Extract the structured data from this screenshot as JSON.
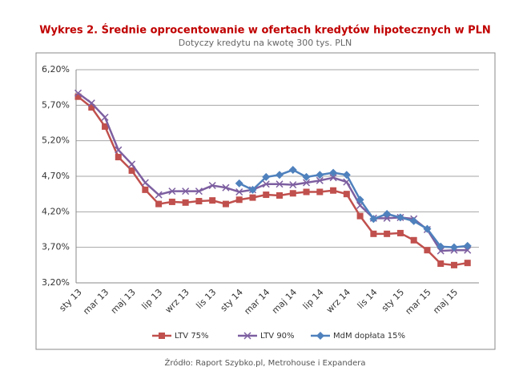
{
  "chart_data": {
    "type": "line",
    "title": "Wykres 2. Średnie oprocentowanie w ofertach kredytów hipotecznych w PLN",
    "subtitle": "Dotyczy kredytu na kwotę 300 tys. PLN",
    "source": "Źródło: Raport Szybko.pl, Metrohouse i Expandera",
    "categories": [
      "sty 13",
      null,
      "mar 13",
      null,
      "maj 13",
      null,
      "lip 13",
      null,
      "wrz 13",
      null,
      "lis 13",
      null,
      "sty 14",
      null,
      "mar 14",
      null,
      "maj 14",
      null,
      "lip 14",
      null,
      "wrz 14",
      null,
      "lis 14",
      null,
      "sty 15",
      null,
      "mar 15",
      null,
      "maj 15",
      null
    ],
    "ylim": [
      3.2,
      6.2
    ],
    "yticks": [
      {
        "value": 3.2,
        "label": "3,20%"
      },
      {
        "value": 3.7,
        "label": "3,70%"
      },
      {
        "value": 4.2,
        "label": "4,20%"
      },
      {
        "value": 4.7,
        "label": "4,70%"
      },
      {
        "value": 5.2,
        "label": "5,20%"
      },
      {
        "value": 5.7,
        "label": "5,70%"
      },
      {
        "value": 6.2,
        "label": "6,20%"
      }
    ],
    "grid": true,
    "legend": "bottom",
    "series": [
      {
        "name": "LTV 75%",
        "color": "#c0504d",
        "marker": "square",
        "values": [
          5.82,
          5.67,
          5.4,
          4.97,
          4.78,
          4.51,
          4.31,
          4.34,
          4.33,
          4.35,
          4.36,
          4.31,
          4.37,
          4.4,
          4.44,
          4.43,
          4.46,
          4.48,
          4.48,
          4.5,
          4.45,
          4.14,
          3.89,
          3.89,
          3.9,
          3.8,
          3.66,
          3.47,
          3.45,
          3.48
        ]
      },
      {
        "name": "LTV 90%",
        "color": "#7d5fa0",
        "marker": "x",
        "values": [
          5.87,
          5.73,
          5.53,
          5.07,
          4.87,
          4.61,
          4.44,
          4.49,
          4.49,
          4.49,
          4.57,
          4.54,
          4.48,
          4.51,
          4.59,
          4.59,
          4.58,
          4.61,
          4.64,
          4.68,
          4.62,
          4.29,
          4.11,
          4.11,
          4.12,
          4.1,
          3.95,
          3.65,
          3.66,
          3.66
        ]
      },
      {
        "name": "MdM dopłata 15%",
        "color": "#4f81bd",
        "marker": "diamond",
        "values": [
          null,
          null,
          null,
          null,
          null,
          null,
          null,
          null,
          null,
          null,
          null,
          null,
          4.6,
          4.51,
          4.69,
          4.72,
          4.79,
          4.69,
          4.72,
          4.75,
          4.72,
          4.37,
          4.1,
          4.17,
          4.12,
          4.07,
          3.96,
          3.71,
          3.7,
          3.72
        ]
      }
    ]
  }
}
